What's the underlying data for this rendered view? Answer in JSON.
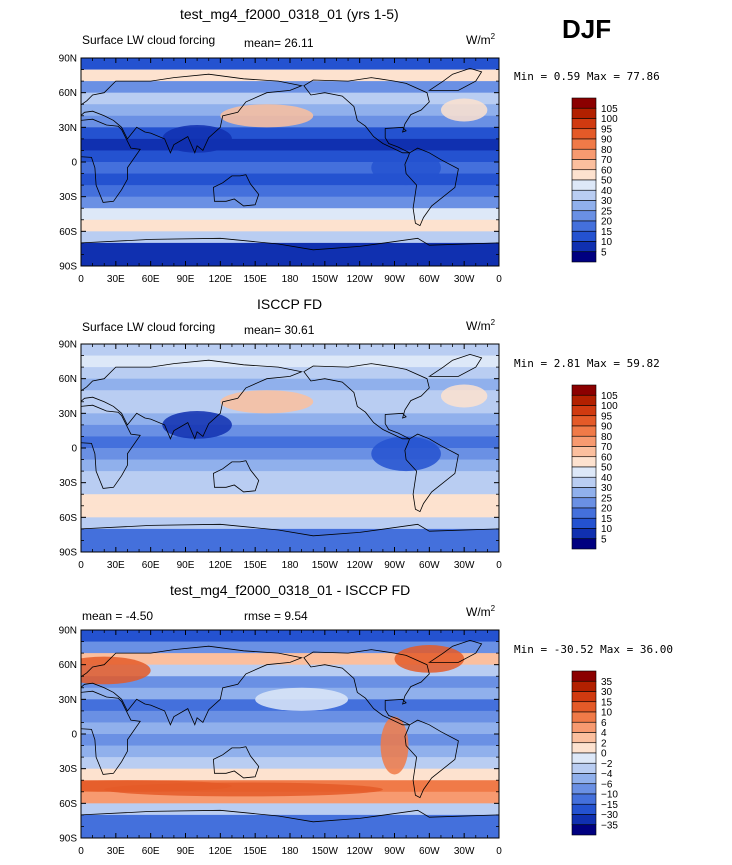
{
  "season": "DJF",
  "x_ticks": [
    "0",
    "30E",
    "60E",
    "90E",
    "120E",
    "150E",
    "180",
    "150W",
    "120W",
    "90W",
    "60W",
    "30W",
    "0"
  ],
  "y_ticks": [
    "90N",
    "60N",
    "30N",
    "0",
    "30S",
    "60S",
    "90S"
  ],
  "panels": [
    {
      "title": "test_mg4_f2000_0318_01 (yrs 1-5)",
      "left_label": "Surface LW cloud forcing",
      "mean_label": "mean=  26.11",
      "rmse_label": "",
      "units": "W/m",
      "units_sup": "2",
      "minmax": "Min =   0.59 Max =  77.86",
      "colorbar": [
        "105",
        "100",
        "95",
        "90",
        "80",
        "70",
        "60",
        "50",
        "40",
        "30",
        "25",
        "20",
        "15",
        "10",
        "5"
      ],
      "colors": [
        "#8b0000",
        "#b22000",
        "#d03a10",
        "#e45a28",
        "#f07a48",
        "#f79a70",
        "#fbbf9e",
        "#fde2cf",
        "#dde8f8",
        "#b9cdf2",
        "#90b0ec",
        "#6a90e4",
        "#4470dc",
        "#2452d0",
        "#1030b0",
        "#000080"
      ]
    },
    {
      "title": "ISCCP FD",
      "left_label": "Surface LW cloud forcing",
      "mean_label": "mean=  30.61",
      "rmse_label": "",
      "units": "W/m",
      "units_sup": "2",
      "minmax": "Min =   2.81 Max =  59.82",
      "colorbar": [
        "105",
        "100",
        "95",
        "90",
        "80",
        "70",
        "60",
        "50",
        "40",
        "30",
        "25",
        "20",
        "15",
        "10",
        "5"
      ],
      "colors": [
        "#8b0000",
        "#b22000",
        "#d03a10",
        "#e45a28",
        "#f07a48",
        "#f79a70",
        "#fbbf9e",
        "#fde2cf",
        "#dde8f8",
        "#b9cdf2",
        "#90b0ec",
        "#6a90e4",
        "#4470dc",
        "#2452d0",
        "#1030b0",
        "#000080"
      ]
    },
    {
      "title": "test_mg4_f2000_0318_01 - ISCCP FD",
      "left_label": "",
      "mean_label": "mean =  -4.50",
      "rmse_label": "rmse =   9.54",
      "units": "W/m",
      "units_sup": "2",
      "minmax": "Min = -30.52 Max =  36.00",
      "colorbar": [
        "35",
        "30",
        "15",
        "10",
        "6",
        "4",
        "2",
        "0",
        "−2",
        "−4",
        "−6",
        "−10",
        "−15",
        "−30",
        "−35"
      ],
      "colors": [
        "#8b0000",
        "#b22000",
        "#d03a10",
        "#e45a28",
        "#f07a48",
        "#f79a70",
        "#fbbf9e",
        "#fde2cf",
        "#dde8f8",
        "#b9cdf2",
        "#90b0ec",
        "#6a90e4",
        "#4470dc",
        "#2452d0",
        "#1030b0",
        "#000080"
      ]
    }
  ]
}
